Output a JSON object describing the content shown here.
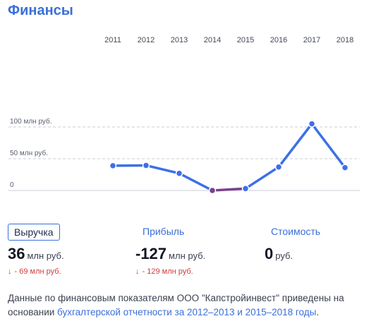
{
  "header": {
    "title": "Финансы"
  },
  "chart_data": {
    "type": "line",
    "categories": [
      "2011",
      "2012",
      "2013",
      "2014",
      "2015",
      "2016",
      "2017",
      "2018"
    ],
    "series": [
      {
        "values": [
          39,
          39.5,
          27,
          0,
          3,
          37,
          105,
          36
        ]
      }
    ],
    "y_ticks": [
      {
        "value": 100,
        "label": "100 млн руб."
      },
      {
        "value": 50,
        "label": "50 млн руб."
      },
      {
        "value": 0,
        "label": "0"
      }
    ],
    "ylim": [
      0,
      105
    ],
    "grid": true,
    "colors": {
      "line": "#3d6fe6",
      "negative_segment": "#7b3f8f",
      "point_fill": "#3d6fe6",
      "point_stroke": "#ffffff",
      "grid": "#c8ccd4"
    }
  },
  "metrics": {
    "revenue": {
      "label": "Выручка",
      "value": "36",
      "unit": "млн руб.",
      "change": "- 69 млн руб."
    },
    "profit": {
      "label": "Прибыль",
      "value": "-127",
      "unit": "млн руб.",
      "change": "- 129 млн руб."
    },
    "value": {
      "label": "Стоимость",
      "value": "0",
      "unit": "руб."
    }
  },
  "note": {
    "text": "Данные по финансовым показателям ООО \"Капстройинвест\" приведены на основании ",
    "link": "бухгалтерской отчетности за 2012–2013 и 2015–2018 годы",
    "end": "."
  },
  "colors": {
    "accent": "#3a6fd9",
    "down": "#d23a3a"
  }
}
